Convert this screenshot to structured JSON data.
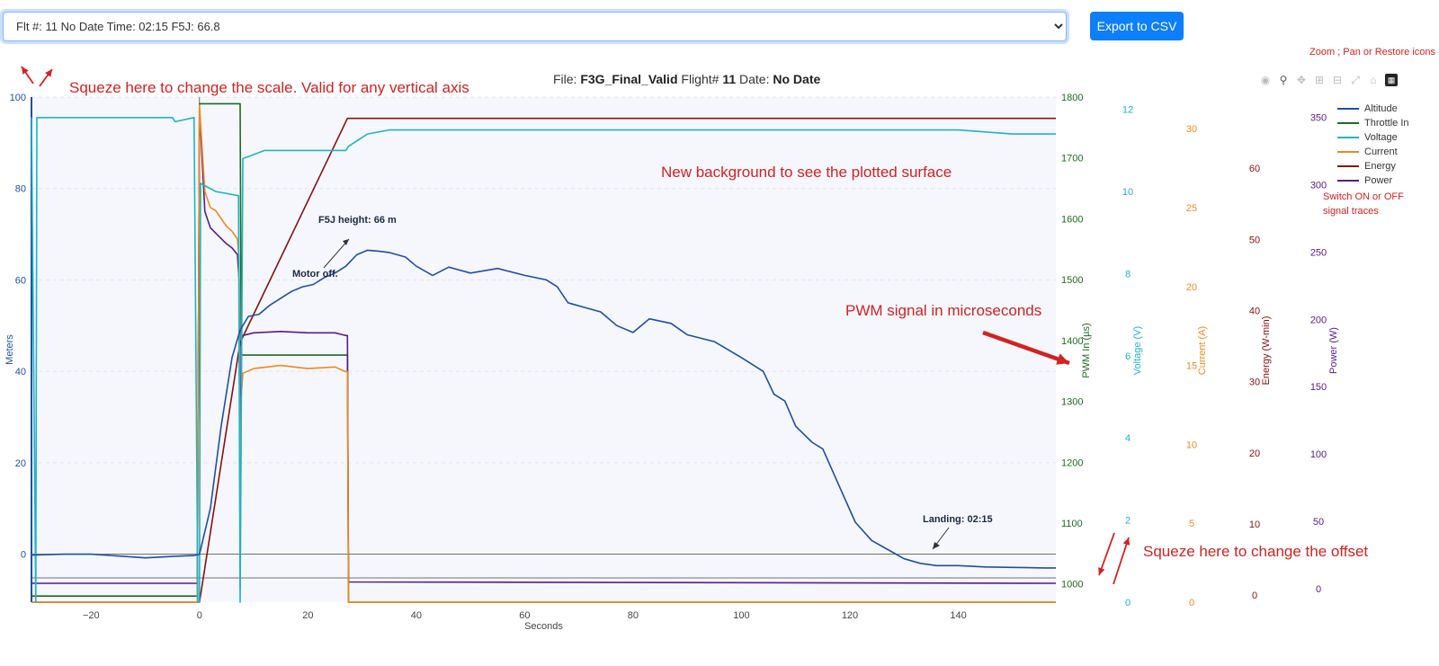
{
  "toolbar": {
    "flight_select_value": "Flt #: 11 No Date Time: 02:15 F5J: 66.8",
    "export_label": "Export to CSV"
  },
  "header": {
    "file_label": "File:",
    "file_name": "F3G_Final_Valid",
    "flight_label": "Flight#",
    "flight_number": "11",
    "date_label": "Date:",
    "date_value": "No Date"
  },
  "modebar": [
    "camera-icon",
    "zoom-icon",
    "pan-icon",
    "zoom-in-icon",
    "zoom-out-icon",
    "autoscale-icon",
    "home-icon",
    "plotly-logo-icon"
  ],
  "annotations": {
    "zoom_note": "Zoom ; Pan or Restore icons",
    "scale_note": "Squeze here to change the scale. Valid for any vertical axis",
    "background_note": "New background to see the plotted surface",
    "pwm_note": "PWM signal in microseconds",
    "offset_note": "Squeze here to change the offset",
    "switch_note_1": "Switch ON or OFF",
    "switch_note_2": "signal traces",
    "f5j_height": "F5J height: 66 m",
    "motor_off": "Motor off.",
    "landing": "Landing: 02:15"
  },
  "colors": {
    "altitude": "#1f4fa3",
    "throttle": "#1e6b1e",
    "voltage": "#1fb3c8",
    "current": "#f08a1e",
    "energy": "#8b1010",
    "power": "#5a1a8c",
    "plot_bg": "#f5f7fc",
    "red_annot": "#d32222"
  },
  "chart_data": {
    "type": "line",
    "xlabel": "Seconds",
    "xlim": [
      -31,
      158
    ],
    "x_ticks": [
      -20,
      0,
      20,
      40,
      60,
      80,
      100,
      120,
      140
    ],
    "axes": {
      "altitude": {
        "label": "Meters",
        "range": [
          -10.5,
          100
        ],
        "ticks": [
          0,
          20,
          40,
          60,
          80,
          100
        ]
      },
      "throttle": {
        "label": "PWM In (µs)",
        "range": [
          970,
          1800
        ],
        "ticks": [
          1000,
          1100,
          1200,
          1300,
          1400,
          1500,
          1600,
          1700,
          1800
        ]
      },
      "voltage": {
        "label": "Voltage (V)",
        "range": [
          0,
          12.3
        ],
        "ticks": [
          0,
          2,
          4,
          6,
          8,
          10,
          12
        ]
      },
      "current": {
        "label": "Current (A)",
        "range": [
          0,
          32
        ],
        "ticks": [
          0,
          5,
          10,
          15,
          20,
          25,
          30
        ]
      },
      "energy": {
        "label": "Energy (W-min)",
        "range": [
          -1,
          70
        ],
        "ticks": [
          0,
          10,
          20,
          30,
          40,
          50,
          60
        ]
      },
      "power": {
        "label": "Power (W)",
        "range": [
          -10,
          365
        ],
        "ticks": [
          0,
          50,
          100,
          150,
          200,
          250,
          300,
          350
        ]
      }
    },
    "series": [
      {
        "name": "Altitude",
        "axis": "altitude",
        "x": [
          -31,
          -25,
          -20,
          -15,
          -10,
          -5,
          -1,
          0,
          2,
          4,
          6,
          7.5,
          9,
          11,
          13,
          15,
          17,
          19,
          21,
          23,
          25,
          27,
          29,
          31,
          33,
          35,
          38,
          40,
          43,
          46,
          50,
          55,
          60,
          64,
          66,
          68,
          71,
          74,
          77,
          80,
          83,
          87,
          90,
          95,
          100,
          104,
          106,
          108,
          110,
          113,
          115,
          118,
          121,
          124,
          127,
          130,
          133,
          136,
          140,
          145,
          150,
          156,
          158
        ],
        "y": [
          -0.2,
          0,
          0,
          -0.4,
          -0.8,
          -0.5,
          -0.3,
          0,
          10,
          28,
          43,
          49,
          52,
          52.5,
          54.5,
          56,
          57.5,
          58.5,
          59,
          60.5,
          61.5,
          63,
          65.5,
          66.5,
          66.3,
          66,
          65,
          63,
          61,
          62.8,
          61.5,
          62.5,
          61,
          60,
          58.5,
          55,
          54,
          53,
          50,
          48.5,
          51.5,
          50.5,
          48,
          46.5,
          43,
          40,
          35,
          33.5,
          28,
          24.5,
          23,
          15,
          7,
          3,
          1,
          -1,
          -2,
          -2.5,
          -2.5,
          -2.8,
          -2.9,
          -3,
          -3
        ]
      },
      {
        "name": "Throttle In",
        "axis": "throttle",
        "x": [
          -31,
          -0.4,
          0,
          7.5,
          7.7,
          27.3,
          27.5,
          158
        ],
        "y": [
          980,
          980,
          1789,
          1789,
          1376,
          1376,
          970,
          970
        ]
      },
      {
        "name": "Voltage",
        "axis": "voltage",
        "x": [
          -31,
          -30.2,
          -30,
          -5,
          -4.5,
          -1,
          -0.3,
          0,
          0.2,
          3,
          7.2,
          7.5,
          8,
          10,
          12,
          15,
          20,
          24,
          27,
          27.5,
          31,
          35,
          40,
          45,
          50,
          55,
          60,
          70,
          80,
          90,
          100,
          110,
          120,
          130,
          140,
          150,
          158
        ],
        "y": [
          11.8,
          0,
          11.8,
          11.8,
          11.7,
          11.8,
          0,
          0,
          10.2,
          10,
          9.9,
          0,
          10.8,
          10.9,
          11,
          11,
          11,
          11,
          11,
          11.1,
          11.4,
          11.5,
          11.5,
          11.5,
          11.5,
          11.5,
          11.5,
          11.5,
          11.5,
          11.5,
          11.5,
          11.5,
          11.5,
          11.5,
          11.5,
          11.4,
          11.4
        ]
      },
      {
        "name": "Current",
        "axis": "current",
        "x": [
          -31,
          -0.4,
          0,
          1,
          2,
          3,
          4,
          5,
          6,
          7,
          7.3,
          7.5,
          7.7,
          8,
          10,
          15,
          20,
          25,
          27,
          27.3,
          27.5,
          158
        ],
        "y": [
          0,
          0,
          31.5,
          26,
          25,
          24.8,
          24.3,
          23.8,
          23.5,
          23,
          21.8,
          0.8,
          13,
          14.5,
          14.8,
          15,
          14.8,
          14.9,
          14.6,
          14.6,
          0,
          0
        ]
      },
      {
        "name": "Energy",
        "axis": "energy",
        "x": [
          -31,
          -0.4,
          0,
          7.5,
          27.3,
          158
        ],
        "y": [
          -1,
          -1,
          -1,
          35.5,
          67,
          67
        ]
      },
      {
        "name": "Power",
        "axis": "power",
        "x": [
          -31,
          -0.4,
          0,
          1,
          2,
          3,
          4,
          5,
          6,
          7,
          7.3,
          7.5,
          7.7,
          8,
          10,
          15,
          20,
          25,
          27,
          27.3,
          27.5,
          158
        ],
        "y": [
          4,
          4,
          356,
          280,
          268,
          264,
          260,
          256,
          253,
          248,
          230,
          30,
          185,
          188,
          190,
          191,
          190,
          190,
          188,
          188,
          5,
          4
        ]
      }
    ]
  }
}
